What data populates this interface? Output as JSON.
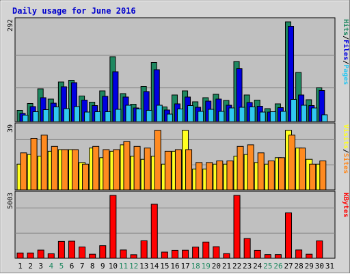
{
  "chart_data": {
    "type": "bar",
    "title": "Daily usage for June 2016",
    "categories": [
      "1",
      "2",
      "3",
      "4",
      "5",
      "6",
      "7",
      "8",
      "9",
      "10",
      "11",
      "12",
      "13",
      "14",
      "15",
      "16",
      "17",
      "18",
      "19",
      "20",
      "21",
      "22",
      "23",
      "24",
      "25",
      "26",
      "27",
      "28",
      "29",
      "30",
      "31"
    ],
    "weekend_days": [
      4,
      5,
      11,
      12,
      18,
      19,
      25,
      26
    ],
    "colors": {
      "hits": "#1e8860",
      "files": "#0000e0",
      "pages": "#30c8f0",
      "visits": "#ffff20",
      "sites": "#ff8a20",
      "kbytes": "#ff0000",
      "weekend_label": "#1e8860",
      "title": "#0000cc",
      "panel_bg": "#c0c0c0",
      "frame_bg": "#d4d4d4"
    },
    "panels": [
      {
        "id": "top",
        "max_label": "292",
        "ylim": [
          0,
          292
        ],
        "legend": [
          {
            "text": "Hits",
            "color": "#1e8860"
          },
          {
            "text": "/",
            "color": "#000000"
          },
          {
            "text": "Files",
            "color": "#0000e0"
          },
          {
            "text": "/",
            "color": "#000000"
          },
          {
            "text": "Pages",
            "color": "#30c8f0"
          }
        ],
        "series": [
          {
            "name": "Hits",
            "values": [
              33,
              53,
              96,
              66,
              116,
              121,
              75,
              57,
              90,
              190,
              82,
              51,
              103,
              173,
              43,
              78,
              90,
              58,
              70,
              80,
              62,
              176,
              78,
              63,
              38,
              52,
              292,
              144,
              64,
              99
            ]
          },
          {
            "name": "Files",
            "values": [
              24,
              44,
              70,
              54,
              102,
              114,
              63,
              47,
              74,
              146,
              72,
              40,
              88,
              152,
              34,
              52,
              72,
              42,
              60,
              66,
              48,
              155,
              56,
              45,
              28,
              41,
              279,
              78,
              47,
              91
            ]
          },
          {
            "name": "Pages",
            "values": [
              19,
              29,
              35,
              43,
              38,
              44,
              28,
              29,
              29,
              36,
              48,
              37,
              33,
              48,
              22,
              37,
              47,
              30,
              36,
              30,
              40,
              42,
              43,
              28,
              29,
              30,
              65,
              48,
              40,
              20
            ]
          }
        ]
      },
      {
        "id": "middle",
        "max_label": "39",
        "ylim": [
          0,
          39
        ],
        "legend": [
          {
            "text": "Visits",
            "color": "#ffff20"
          },
          {
            "text": "/",
            "color": "#000000"
          },
          {
            "text": "Sites",
            "color": "#ff8a20"
          }
        ],
        "series": [
          {
            "name": "Visits",
            "values": [
              16,
              22,
              21,
              24,
              25,
              25,
              17,
              26,
              20,
              24,
              28,
              21,
              19,
              21,
              16,
              24,
              37,
              13,
              13,
              16,
              16,
              21,
              22,
              17,
              16,
              20,
              37,
              26,
              19,
              16
            ]
          },
          {
            "name": "Sites",
            "values": [
              23,
              32,
              34,
              27,
              25,
              25,
              16,
              27,
              25,
              25,
              30,
              27,
              26,
              37,
              24,
              25,
              25,
              17,
              17,
              18,
              18,
              27,
              28,
              23,
              18,
              20,
              34,
              26,
              16,
              18
            ]
          }
        ]
      },
      {
        "id": "bottom",
        "max_label": "5003",
        "ylim": [
          0,
          5003
        ],
        "legend": [
          {
            "text": "KBytes",
            "color": "#ff0000"
          }
        ],
        "series": [
          {
            "name": "KBytes",
            "values": [
              420,
              420,
              650,
              360,
              1340,
              1360,
              900,
              320,
              1000,
              5003,
              660,
              280,
              1390,
              4300,
              490,
              630,
              640,
              890,
              1290,
              920,
              370,
              5003,
              1570,
              630,
              290,
              290,
              3610,
              660,
              320,
              1380
            ]
          }
        ]
      }
    ]
  }
}
